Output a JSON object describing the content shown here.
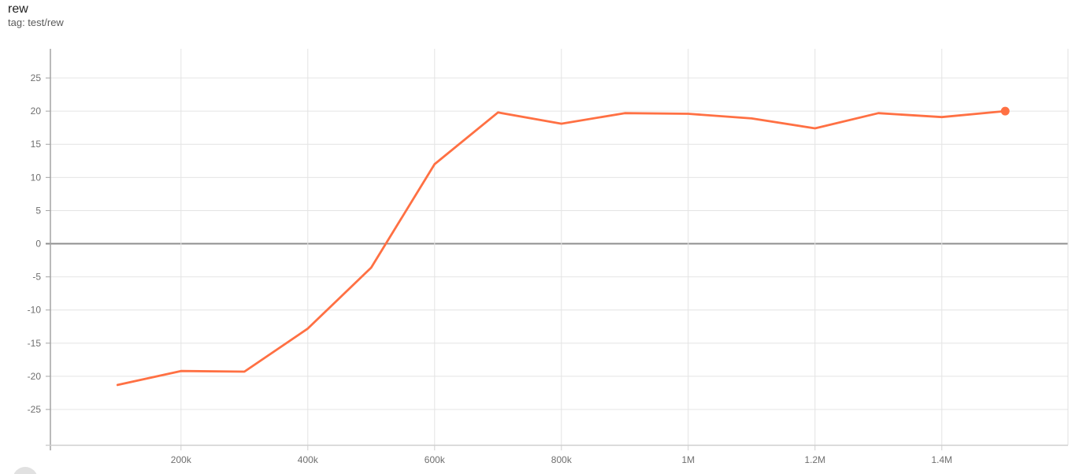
{
  "card": {
    "title": "rew",
    "subtitle": "tag: test/rew"
  },
  "chart_data": {
    "type": "line",
    "title": "rew",
    "tag": "test/rew",
    "grid": true,
    "legend": "none",
    "x_axis": {
      "lim": [
        -6000,
        1599000
      ],
      "ticks": [
        {
          "v": 200000,
          "label": "200k"
        },
        {
          "v": 400000,
          "label": "400k"
        },
        {
          "v": 600000,
          "label": "600k"
        },
        {
          "v": 800000,
          "label": "800k"
        },
        {
          "v": 1000000,
          "label": "1M"
        },
        {
          "v": 1200000,
          "label": "1.2M"
        },
        {
          "v": 1400000,
          "label": "1.4M"
        }
      ]
    },
    "y_axis": {
      "lim": [
        -30.4,
        29.4
      ],
      "zero_line": true,
      "ticks": [
        {
          "v": -25,
          "label": "-25"
        },
        {
          "v": -20,
          "label": "-20"
        },
        {
          "v": -15,
          "label": "-15"
        },
        {
          "v": -10,
          "label": "-10"
        },
        {
          "v": -5,
          "label": "-5"
        },
        {
          "v": 0,
          "label": "0"
        },
        {
          "v": 5,
          "label": "5"
        },
        {
          "v": 10,
          "label": "10"
        },
        {
          "v": 15,
          "label": "15"
        },
        {
          "v": 20,
          "label": "20"
        },
        {
          "v": 25,
          "label": "25"
        }
      ]
    },
    "series": [
      {
        "name": "test/rew",
        "color": "#ff7043",
        "end_marker": true,
        "points": [
          [
            100000,
            -21.3
          ],
          [
            200000,
            -19.2
          ],
          [
            300000,
            -19.3
          ],
          [
            400000,
            -12.8
          ],
          [
            500000,
            -3.6
          ],
          [
            600000,
            12.0
          ],
          [
            700000,
            19.8
          ],
          [
            800000,
            18.1
          ],
          [
            900000,
            19.7
          ],
          [
            1000000,
            19.6
          ],
          [
            1100000,
            18.9
          ],
          [
            1200000,
            17.4
          ],
          [
            1300000,
            19.7
          ],
          [
            1400000,
            19.1
          ],
          [
            1500000,
            20.0
          ]
        ]
      }
    ]
  },
  "colors": {
    "line": "#ff7043",
    "grid": "#e4e4e4",
    "zero_line": "#8f8f8f",
    "axis_y": "#a3a3a3",
    "axis_x": "#cfcfcf",
    "right_border": "#e0e0e0",
    "tick_label": "#6f6f6f",
    "title": "#212121",
    "subtitle": "#5a5a5a",
    "fab": "#e1e1e1",
    "background": "#ffffff"
  }
}
